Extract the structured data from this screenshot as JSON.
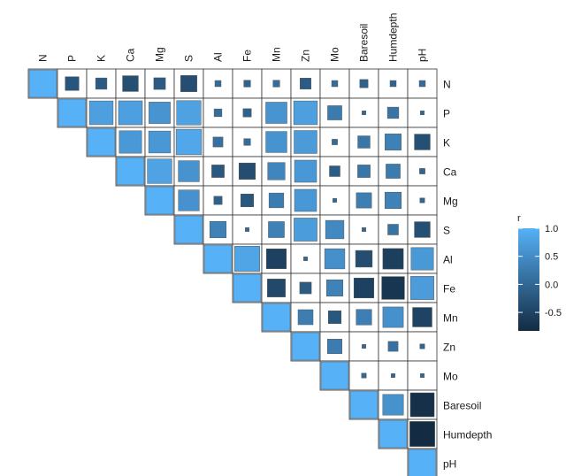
{
  "chart_data": {
    "type": "heatmap",
    "subtype": "correlation-matrix-upper",
    "variables": [
      "N",
      "P",
      "K",
      "Ca",
      "Mg",
      "S",
      "Al",
      "Fe",
      "Mn",
      "Zn",
      "Mo",
      "Baresoil",
      "Humdepth",
      "pH"
    ],
    "matrix": [
      [
        1.0,
        -0.25,
        -0.17,
        -0.33,
        -0.18,
        -0.35,
        0.05,
        -0.06,
        0.06,
        -0.16,
        0.05,
        -0.09,
        -0.05,
        0.05
      ],
      [
        -0.25,
        1.0,
        0.75,
        0.76,
        0.61,
        0.79,
        0.08,
        -0.09,
        0.6,
        0.75,
        0.27,
        0.02,
        0.17,
        0.02
      ],
      [
        -0.17,
        0.75,
        1.0,
        0.67,
        0.64,
        0.86,
        0.13,
        0.06,
        0.59,
        0.7,
        0.04,
        0.2,
        0.35,
        -0.33
      ],
      [
        -0.33,
        0.76,
        0.67,
        1.0,
        0.8,
        0.59,
        -0.21,
        -0.36,
        0.4,
        0.65,
        -0.15,
        0.21,
        0.27,
        -0.04
      ],
      [
        -0.18,
        0.61,
        0.64,
        0.8,
        1.0,
        0.58,
        -0.09,
        -0.22,
        0.29,
        0.65,
        0.01,
        0.31,
        0.36,
        -0.03
      ],
      [
        -0.35,
        0.79,
        0.86,
        0.59,
        0.58,
        1.0,
        0.36,
        0.01,
        0.34,
        0.71,
        0.45,
        0.02,
        0.15,
        -0.33
      ],
      [
        0.05,
        0.08,
        0.13,
        -0.21,
        -0.09,
        0.36,
        1.0,
        0.84,
        -0.53,
        0.01,
        0.54,
        -0.37,
        -0.56,
        0.67
      ],
      [
        -0.06,
        -0.09,
        0.06,
        -0.36,
        -0.22,
        0.01,
        0.84,
        1.0,
        -0.43,
        -0.18,
        0.36,
        -0.53,
        -0.69,
        0.72
      ],
      [
        0.06,
        0.6,
        0.59,
        0.4,
        0.29,
        0.34,
        -0.53,
        -0.43,
        1.0,
        0.3,
        -0.22,
        0.32,
        0.56,
        -0.5
      ],
      [
        -0.16,
        0.75,
        0.7,
        0.65,
        0.65,
        0.71,
        0.01,
        -0.18,
        0.3,
        1.0,
        0.28,
        0.01,
        0.13,
        -0.03
      ],
      [
        0.05,
        0.27,
        0.04,
        -0.15,
        0.01,
        0.45,
        0.54,
        0.36,
        -0.22,
        0.28,
        1.0,
        0.03,
        -0.01,
        0.02
      ],
      [
        -0.09,
        0.02,
        0.2,
        0.21,
        0.31,
        0.02,
        -0.37,
        -0.53,
        0.32,
        0.01,
        0.03,
        1.0,
        0.57,
        -0.76
      ],
      [
        -0.05,
        0.17,
        0.35,
        0.27,
        0.36,
        0.15,
        -0.56,
        -0.69,
        0.56,
        0.13,
        -0.01,
        0.57,
        1.0,
        -0.83
      ],
      [
        0.05,
        0.02,
        -0.33,
        -0.04,
        -0.03,
        -0.33,
        0.67,
        0.72,
        -0.5,
        -0.03,
        0.02,
        -0.76,
        -0.83,
        1.0
      ]
    ],
    "value_range": [
      -0.83,
      1.0
    ],
    "legend": {
      "title": "r",
      "ticks": [
        "1.0",
        "0.5",
        "0.0",
        "-0.5"
      ],
      "tick_values": [
        1.0,
        0.5,
        0.0,
        -0.5
      ],
      "placement": "right"
    },
    "colors": {
      "low": "#132B43",
      "high": "#56B1F7",
      "grid": "#333333",
      "background": "#ffffff"
    }
  }
}
